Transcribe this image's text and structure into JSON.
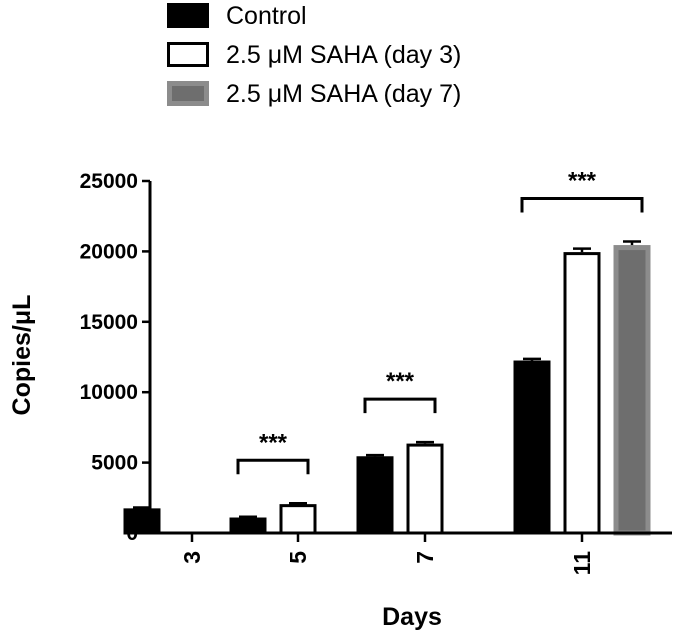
{
  "chart_data": {
    "type": "bar",
    "xlabel": "Days",
    "ylabel": "Copies/μL",
    "ylim": [
      0,
      25000
    ],
    "yticks": [
      0,
      5000,
      10000,
      15000,
      20000,
      25000
    ],
    "ytick_labels": [
      "0",
      "5000",
      "10000",
      "15000",
      "20000",
      "25000"
    ],
    "categories": [
      "3",
      "5",
      "7",
      "11"
    ],
    "legend_position": "top-left",
    "grid": false,
    "series": [
      {
        "name": "Control",
        "color": "#000000",
        "fill": "#000000",
        "values": [
          1750,
          1100,
          5450,
          12250
        ],
        "errors": [
          60,
          50,
          80,
          120
        ]
      },
      {
        "name": "2.5 μM SAHA (day 3)",
        "color": "#000000",
        "fill": "#ffffff",
        "values": [
          null,
          2050,
          6350,
          19950
        ],
        "errors": [
          null,
          60,
          100,
          250
        ]
      },
      {
        "name": "2.5 μM SAHA (day 7)",
        "color": "#8c8c8c",
        "fill": "#6e6e6e",
        "values": [
          null,
          null,
          null,
          20450
        ],
        "errors": [
          null,
          null,
          null,
          250
        ]
      }
    ],
    "annotations": [
      {
        "text": "***",
        "category": "5",
        "from_series": 0,
        "to_series": 1
      },
      {
        "text": "***",
        "category": "7",
        "from_series": 0,
        "to_series": 1
      },
      {
        "text": "***",
        "category": "11",
        "from_series": 0,
        "to_series": 2
      }
    ]
  }
}
